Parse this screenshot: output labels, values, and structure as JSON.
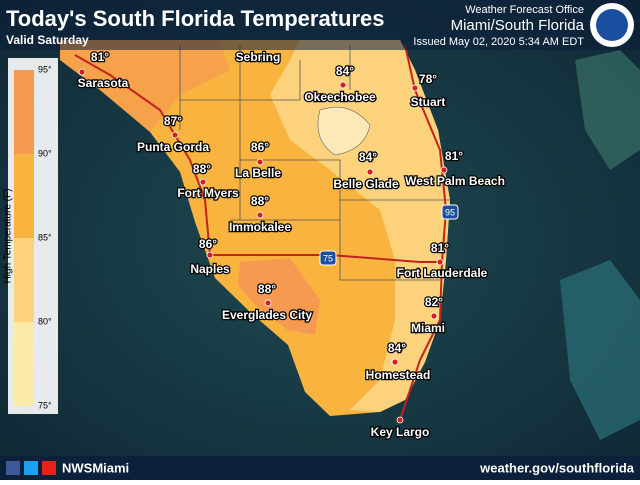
{
  "header": {
    "title": "Today's South Florida Temperatures",
    "subtitle": "Valid Saturday",
    "office": "Weather Forecast Office",
    "location": "Miami/South Florida",
    "issued": "Issued May 02, 2020 5:34 AM EDT"
  },
  "legend": {
    "label": "High Temperature (F)",
    "ticks": [
      "95°",
      "90°",
      "85°",
      "80°",
      "75°"
    ],
    "colors": [
      "#f59a50",
      "#f8b43e",
      "#fcd27c",
      "#fdeaa8"
    ]
  },
  "cities": [
    {
      "name": "Sarasota",
      "temp": "81°"
    },
    {
      "name": "Sebring"
    },
    {
      "name": "Okeechobee",
      "temp": "84°"
    },
    {
      "name": "Stuart",
      "temp": "78°"
    },
    {
      "name": "Punta Gorda",
      "temp": "87°"
    },
    {
      "name": "La Belle",
      "temp": "86°"
    },
    {
      "name": "Fort Myers",
      "temp": "88°"
    },
    {
      "name": "Belle Glade",
      "temp": "84°"
    },
    {
      "name": "West Palm Beach",
      "temp": "81°"
    },
    {
      "name": "Immokalee",
      "temp": "88°"
    },
    {
      "name": "Naples",
      "temp": "86°"
    },
    {
      "name": "Fort Lauderdale",
      "temp": "81°"
    },
    {
      "name": "Everglades City",
      "temp": "88°"
    },
    {
      "name": "Miami",
      "temp": "82°"
    },
    {
      "name": "Homestead",
      "temp": "84°"
    },
    {
      "name": "Key Largo"
    }
  ],
  "highways": [
    "75",
    "95"
  ],
  "footer": {
    "handle": "NWSMiami",
    "url": "weather.gov/southflorida"
  }
}
